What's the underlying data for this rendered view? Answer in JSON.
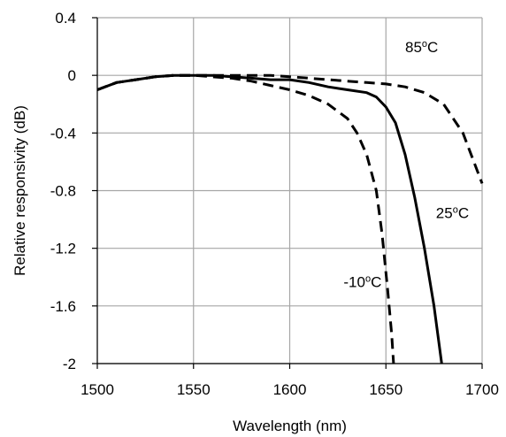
{
  "chart_data": {
    "type": "line",
    "title": "",
    "xlabel": "Wavelength  (nm)",
    "ylabel": "Relative responsivity  (dB)",
    "xlim": [
      1500,
      1700
    ],
    "ylim": [
      -2,
      0.4
    ],
    "xticks": [
      1500,
      1550,
      1600,
      1650,
      1700
    ],
    "yticks": [
      0.4,
      0,
      -0.4,
      -0.8,
      -1.2,
      -1.6,
      -2
    ],
    "ytick_labels": [
      "0.4",
      "0",
      "-0.4",
      "-0.8",
      "-1.2",
      "-1.6",
      "-2"
    ],
    "grid": true,
    "legend": "none",
    "series": [
      {
        "temp": "85",
        "style": "dashed",
        "color": "#000000",
        "points": [
          [
            1500,
            -0.1
          ],
          [
            1510,
            -0.05
          ],
          [
            1520,
            -0.03
          ],
          [
            1530,
            -0.01
          ],
          [
            1540,
            0
          ],
          [
            1550,
            0
          ],
          [
            1560,
            0
          ],
          [
            1570,
            0
          ],
          [
            1580,
            0
          ],
          [
            1590,
            0
          ],
          [
            1600,
            -0.01
          ],
          [
            1610,
            -0.02
          ],
          [
            1620,
            -0.03
          ],
          [
            1630,
            -0.04
          ],
          [
            1640,
            -0.05
          ],
          [
            1650,
            -0.06
          ],
          [
            1660,
            -0.08
          ],
          [
            1670,
            -0.12
          ],
          [
            1680,
            -0.2
          ],
          [
            1690,
            -0.4
          ],
          [
            1700,
            -0.75
          ]
        ]
      },
      {
        "temp": "25",
        "style": "solid",
        "color": "#000000",
        "points": [
          [
            1500,
            -0.1
          ],
          [
            1510,
            -0.05
          ],
          [
            1520,
            -0.03
          ],
          [
            1530,
            -0.01
          ],
          [
            1540,
            0
          ],
          [
            1550,
            0
          ],
          [
            1560,
            0
          ],
          [
            1570,
            -0.01
          ],
          [
            1580,
            -0.02
          ],
          [
            1590,
            -0.03
          ],
          [
            1600,
            -0.03
          ],
          [
            1610,
            -0.05
          ],
          [
            1620,
            -0.08
          ],
          [
            1630,
            -0.1
          ],
          [
            1640,
            -0.12
          ],
          [
            1645,
            -0.15
          ],
          [
            1650,
            -0.22
          ],
          [
            1655,
            -0.33
          ],
          [
            1660,
            -0.55
          ],
          [
            1665,
            -0.85
          ],
          [
            1670,
            -1.2
          ],
          [
            1675,
            -1.6
          ],
          [
            1679,
            -2
          ]
        ]
      },
      {
        "temp": "-10",
        "style": "dashed",
        "color": "#000000",
        "points": [
          [
            1500,
            -0.1
          ],
          [
            1510,
            -0.05
          ],
          [
            1520,
            -0.03
          ],
          [
            1530,
            -0.01
          ],
          [
            1540,
            0
          ],
          [
            1550,
            0
          ],
          [
            1560,
            -0.01
          ],
          [
            1570,
            -0.02
          ],
          [
            1580,
            -0.04
          ],
          [
            1590,
            -0.07
          ],
          [
            1600,
            -0.1
          ],
          [
            1610,
            -0.14
          ],
          [
            1620,
            -0.2
          ],
          [
            1630,
            -0.3
          ],
          [
            1635,
            -0.4
          ],
          [
            1640,
            -0.55
          ],
          [
            1645,
            -0.8
          ],
          [
            1648,
            -1.1
          ],
          [
            1651,
            -1.5
          ],
          [
            1653,
            -1.8
          ],
          [
            1654,
            -2
          ]
        ]
      }
    ],
    "annotations": [
      {
        "series": 0,
        "text": "85",
        "unit": "C",
        "sup": "o",
        "x": 1660,
        "y": 0.16
      },
      {
        "series": 1,
        "text": "25",
        "unit": "C",
        "sup": "o",
        "x": 1676,
        "y": -0.99
      },
      {
        "series": 2,
        "text": "-10",
        "unit": "C",
        "sup": "o",
        "x": 1628,
        "y": -1.47
      }
    ]
  }
}
